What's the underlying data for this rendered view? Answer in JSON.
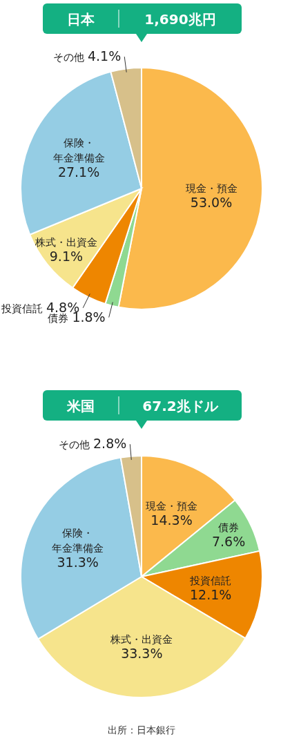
{
  "chart_data": [
    {
      "type": "pie",
      "title": "日本",
      "subtitle": "1,690兆円",
      "categories": [
        "現金・預金",
        "債券",
        "投資信託",
        "株式・出資金",
        "保険・年金準備金",
        "その他"
      ],
      "values": [
        53.0,
        1.8,
        4.8,
        9.1,
        27.1,
        4.1
      ],
      "value_labels": [
        "53.0%",
        "1.8%",
        "4.8%",
        "9.1%",
        "27.1%",
        "4.1%"
      ],
      "colors": [
        "#fbb94c",
        "#8fd991",
        "#ee8600",
        "#f6e48c",
        "#95cde4",
        "#d7c08a"
      ]
    },
    {
      "type": "pie",
      "title": "米国",
      "subtitle": "67.2兆ドル",
      "categories": [
        "現金・預金",
        "債券",
        "投資信託",
        "株式・出資金",
        "保険・年金準備金",
        "その他"
      ],
      "values": [
        14.3,
        7.6,
        12.1,
        33.3,
        31.3,
        2.8
      ],
      "value_labels": [
        "14.3%",
        "7.6%",
        "12.1%",
        "33.3%",
        "31.3%",
        "2.8%"
      ],
      "colors": [
        "#fbb94c",
        "#8fd991",
        "#ee8600",
        "#f6e48c",
        "#95cde4",
        "#d7c08a"
      ],
      "annotations": [
        "出所：日本銀行"
      ]
    }
  ]
}
